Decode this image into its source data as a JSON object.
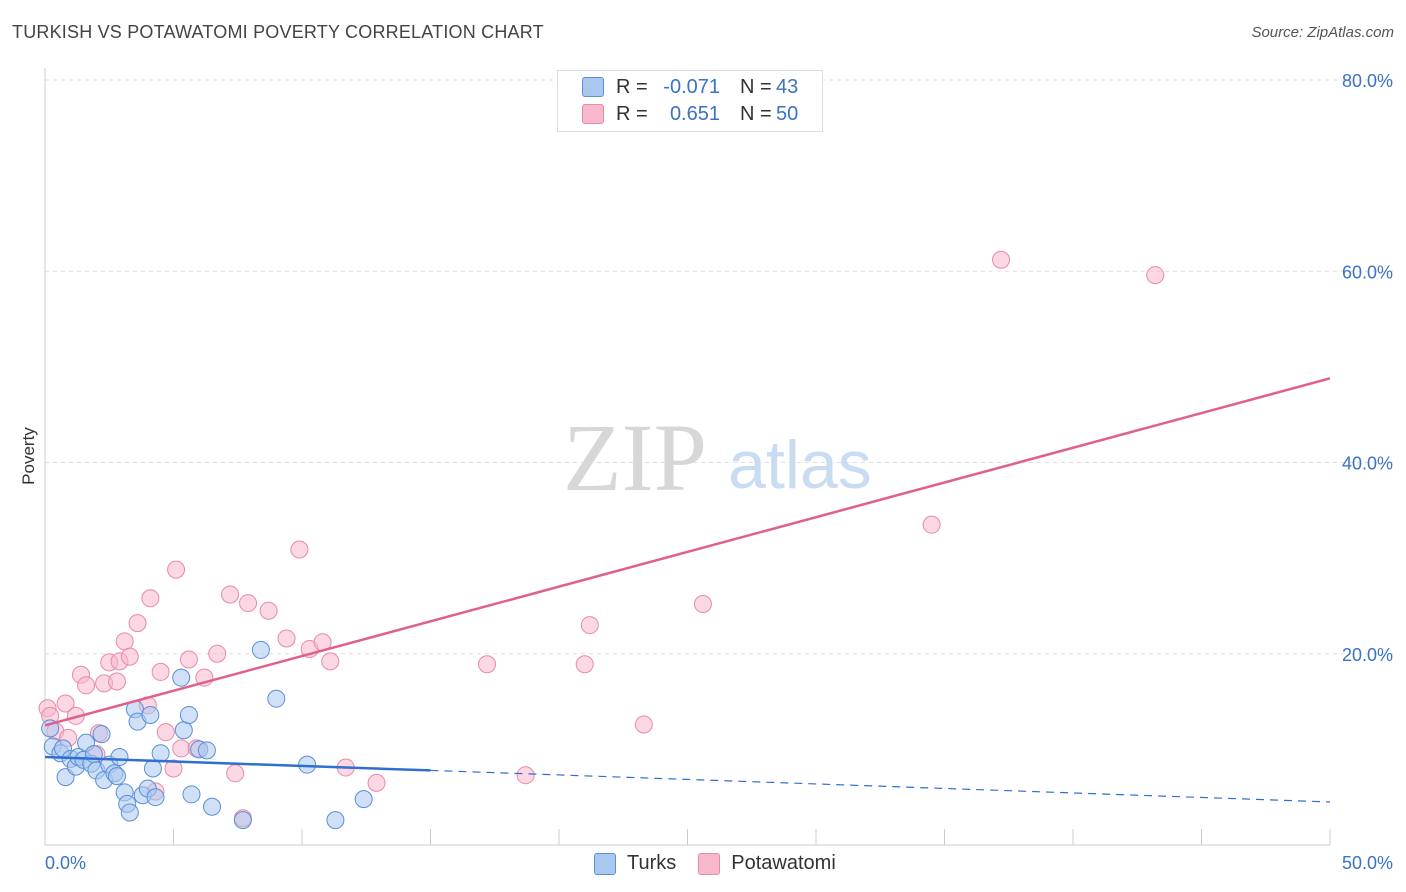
{
  "title": "TURKISH VS POTAWATOMI POVERTY CORRELATION CHART",
  "source": "Source: ZipAtlas.com",
  "watermark": {
    "zip": "ZIP",
    "atlas": "atlas"
  },
  "legend": {
    "rows": [
      {
        "r_label": "R =",
        "r_value": "-0.071",
        "n_label": "N =",
        "n_value": "43",
        "color": "#a9c8f0"
      },
      {
        "r_label": "R =",
        "r_value": "0.651",
        "n_label": "N =",
        "n_value": "50",
        "color": "#f7b8cc"
      }
    ]
  },
  "bottom_legend": {
    "turks": "Turks",
    "potawatomi": "Potawatomi"
  },
  "chart_data": {
    "type": "scatter",
    "title": "TURKISH VS POTAWATOMI POVERTY CORRELATION CHART",
    "xlabel": "",
    "ylabel": "Poverty",
    "xlim": [
      0,
      50
    ],
    "ylim": [
      0,
      80
    ],
    "x_tick_labels": {
      "left": "0.0%",
      "right": "50.0%"
    },
    "y_ticks": [
      {
        "value": 20,
        "label": "20.0%"
      },
      {
        "value": 40,
        "label": "40.0%"
      },
      {
        "value": 60,
        "label": "60.0%"
      },
      {
        "value": 80,
        "label": "80.0%"
      }
    ],
    "grid": true,
    "colors": {
      "turks_fill": "#a9c8f0",
      "turks_stroke": "#5b8fd6",
      "turks_line": "#2f6fd0",
      "pota_fill": "#f7b8cc",
      "pota_stroke": "#e88aa8",
      "pota_line": "#e0608a"
    },
    "series": [
      {
        "name": "Turks",
        "trend": {
          "solid": [
            [
              0,
              9.2
            ],
            [
              15,
              7.8
            ]
          ],
          "dashed": [
            [
              15,
              7.8
            ],
            [
              50,
              4.5
            ]
          ]
        },
        "points": [
          [
            0.2,
            12.2
          ],
          [
            0.3,
            10.3
          ],
          [
            0.6,
            9.6
          ],
          [
            0.7,
            10.1
          ],
          [
            0.8,
            7.1
          ],
          [
            1.0,
            9.0
          ],
          [
            1.2,
            8.2
          ],
          [
            1.3,
            9.2
          ],
          [
            1.5,
            8.9
          ],
          [
            1.6,
            10.7
          ],
          [
            1.8,
            8.5
          ],
          [
            1.9,
            9.5
          ],
          [
            2.0,
            7.8
          ],
          [
            2.2,
            11.6
          ],
          [
            2.3,
            6.8
          ],
          [
            2.5,
            8.4
          ],
          [
            2.7,
            7.5
          ],
          [
            2.8,
            7.2
          ],
          [
            2.9,
            9.2
          ],
          [
            3.1,
            5.5
          ],
          [
            3.2,
            4.3
          ],
          [
            3.3,
            3.4
          ],
          [
            3.5,
            14.2
          ],
          [
            3.6,
            12.9
          ],
          [
            3.8,
            5.2
          ],
          [
            4.0,
            5.9
          ],
          [
            4.1,
            13.6
          ],
          [
            4.2,
            8.0
          ],
          [
            4.3,
            5.0
          ],
          [
            4.5,
            9.6
          ],
          [
            5.3,
            17.5
          ],
          [
            5.4,
            12.0
          ],
          [
            5.6,
            13.6
          ],
          [
            5.7,
            5.3
          ],
          [
            6.0,
            10.0
          ],
          [
            6.3,
            9.9
          ],
          [
            6.5,
            4.0
          ],
          [
            7.7,
            2.6
          ],
          [
            8.4,
            20.4
          ],
          [
            9.0,
            15.3
          ],
          [
            10.2,
            8.4
          ],
          [
            11.3,
            2.6
          ],
          [
            12.4,
            4.8
          ]
        ]
      },
      {
        "name": "Potawatomi",
        "trend": {
          "solid": [
            [
              0,
              12.5
            ],
            [
              50,
              48.8
            ]
          ]
        },
        "points": [
          [
            0.1,
            14.3
          ],
          [
            0.2,
            13.5
          ],
          [
            0.4,
            11.9
          ],
          [
            0.8,
            14.8
          ],
          [
            0.9,
            11.2
          ],
          [
            1.2,
            13.5
          ],
          [
            1.4,
            17.8
          ],
          [
            1.6,
            16.7
          ],
          [
            2.0,
            9.5
          ],
          [
            2.1,
            11.7
          ],
          [
            2.3,
            16.9
          ],
          [
            2.5,
            19.1
          ],
          [
            2.8,
            17.1
          ],
          [
            2.9,
            19.2
          ],
          [
            3.1,
            21.3
          ],
          [
            3.3,
            19.7
          ],
          [
            3.6,
            23.2
          ],
          [
            4.0,
            14.6
          ],
          [
            4.1,
            25.8
          ],
          [
            4.3,
            5.6
          ],
          [
            4.5,
            18.1
          ],
          [
            4.7,
            11.8
          ],
          [
            5.0,
            8.0
          ],
          [
            5.1,
            28.8
          ],
          [
            5.3,
            10.1
          ],
          [
            5.6,
            19.4
          ],
          [
            5.9,
            10.1
          ],
          [
            6.2,
            17.5
          ],
          [
            6.7,
            20.0
          ],
          [
            7.2,
            26.2
          ],
          [
            7.4,
            7.5
          ],
          [
            7.7,
            2.8
          ],
          [
            7.9,
            25.3
          ],
          [
            8.7,
            24.5
          ],
          [
            9.4,
            21.6
          ],
          [
            9.9,
            30.9
          ],
          [
            10.3,
            20.5
          ],
          [
            10.8,
            21.2
          ],
          [
            11.1,
            19.2
          ],
          [
            11.7,
            8.1
          ],
          [
            12.9,
            6.5
          ],
          [
            17.2,
            18.9
          ],
          [
            18.7,
            7.3
          ],
          [
            21.0,
            18.9
          ],
          [
            21.2,
            23.0
          ],
          [
            23.3,
            12.6
          ],
          [
            25.6,
            25.2
          ],
          [
            34.5,
            33.5
          ],
          [
            37.2,
            61.2
          ],
          [
            43.2,
            59.6
          ]
        ]
      }
    ]
  }
}
